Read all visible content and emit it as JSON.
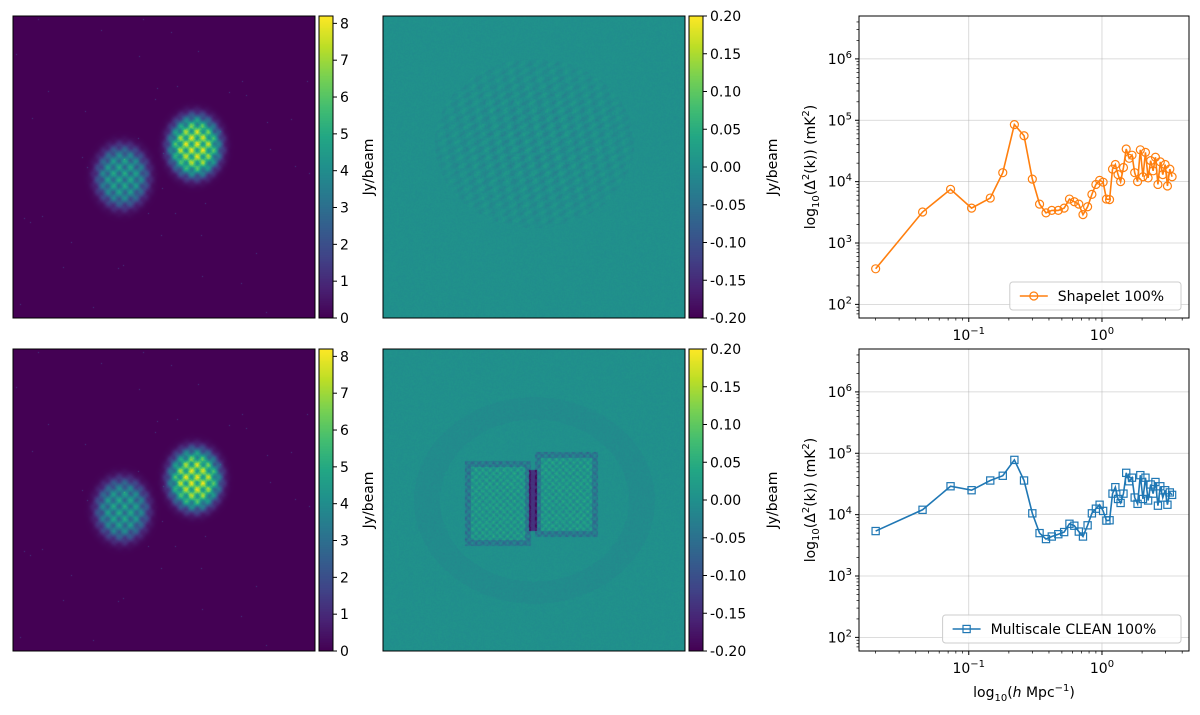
{
  "colorbar_label": "Jy/beam",
  "chart_data": [
    {
      "type": "heatmap",
      "panel": "row1-col1",
      "colormap": "viridis",
      "clim": [
        0,
        8.2
      ],
      "colorbar_ticks": [
        "0",
        "1",
        "2",
        "3",
        "4",
        "5",
        "6",
        "7",
        "8"
      ],
      "colorbar_label": "Jy/beam",
      "blobs": [
        {
          "cx": 0.36,
          "cy": 0.53,
          "rx": 0.085,
          "ry": 0.1,
          "peak": 5.0
        },
        {
          "cx": 0.6,
          "cy": 0.43,
          "rx": 0.085,
          "ry": 0.1,
          "peak": 8.0
        }
      ]
    },
    {
      "type": "heatmap",
      "panel": "row1-col2",
      "colormap": "viridis",
      "clim": [
        -0.2,
        0.2
      ],
      "colorbar_ticks": [
        "-0.20",
        "-0.15",
        "-0.10",
        "-0.05",
        "0.00",
        "0.05",
        "0.10",
        "0.15",
        "0.20"
      ],
      "colorbar_label": "Jy/beam",
      "residual_level": "weak"
    },
    {
      "type": "line",
      "panel": "row1-col3",
      "xscale": "log",
      "yscale": "log",
      "xlim": [
        0.015,
        4.5
      ],
      "ylim": [
        60,
        5000000
      ],
      "ylabel_parts": {
        "prefix": "log",
        "sub": "10",
        "mid": "(Δ",
        "sup": "2",
        "suffix": "(k)) (mK",
        "sup2": "2",
        "end": ")"
      },
      "x_ticks": [
        {
          "base": "10",
          "exp": "−1",
          "value": 0.1
        },
        {
          "base": "10",
          "exp": "0",
          "value": 1
        }
      ],
      "y_ticks": [
        {
          "base": "10",
          "exp": "2",
          "value": 100
        },
        {
          "base": "10",
          "exp": "3",
          "value": 1000
        },
        {
          "base": "10",
          "exp": "4",
          "value": 10000
        },
        {
          "base": "10",
          "exp": "5",
          "value": 100000
        },
        {
          "base": "10",
          "exp": "6",
          "value": 1000000
        }
      ],
      "grid": true,
      "legend_position": "lower-right",
      "series": [
        {
          "name": "Shapelet 100%",
          "color": "#ff7f0e",
          "marker": "circle",
          "x": [
            0.02,
            0.045,
            0.073,
            0.105,
            0.145,
            0.18,
            0.22,
            0.26,
            0.3,
            0.34,
            0.38,
            0.42,
            0.47,
            0.52,
            0.57,
            0.62,
            0.67,
            0.72,
            0.78,
            0.84,
            0.9,
            0.96,
            1.02,
            1.08,
            1.14,
            1.2,
            1.26,
            1.32,
            1.38,
            1.45,
            1.52,
            1.6,
            1.68,
            1.76,
            1.85,
            1.94,
            2.03,
            2.12,
            2.22,
            2.32,
            2.42,
            2.52,
            2.63,
            2.74,
            2.86,
            2.98,
            3.1,
            3.23,
            3.36
          ],
          "y": [
            380,
            3200,
            7500,
            3700,
            5400,
            14000,
            85000,
            56000,
            11000,
            4300,
            3100,
            3400,
            3400,
            3700,
            5200,
            4700,
            4300,
            2900,
            3900,
            6200,
            9000,
            10500,
            9800,
            5200,
            5100,
            16000,
            19000,
            13000,
            10000,
            17000,
            34000,
            24000,
            27000,
            14000,
            10000,
            33000,
            12000,
            30000,
            11500,
            22000,
            15000,
            25000,
            9000,
            21000,
            13000,
            19000,
            8500,
            16000,
            12000
          ]
        }
      ]
    },
    {
      "type": "heatmap",
      "panel": "row2-col1",
      "colormap": "viridis",
      "clim": [
        0,
        8.2
      ],
      "colorbar_ticks": [
        "0",
        "1",
        "2",
        "3",
        "4",
        "5",
        "6",
        "7",
        "8"
      ],
      "colorbar_label": "Jy/beam",
      "blobs": [
        {
          "cx": 0.36,
          "cy": 0.53,
          "rx": 0.085,
          "ry": 0.1,
          "peak": 5.0
        },
        {
          "cx": 0.6,
          "cy": 0.43,
          "rx": 0.085,
          "ry": 0.1,
          "peak": 8.0
        }
      ]
    },
    {
      "type": "heatmap",
      "panel": "row2-col2",
      "colormap": "viridis",
      "clim": [
        -0.2,
        0.2
      ],
      "colorbar_ticks": [
        "-0.20",
        "-0.15",
        "-0.10",
        "-0.05",
        "0.00",
        "0.05",
        "0.10",
        "0.15",
        "0.20"
      ],
      "colorbar_label": "Jy/beam",
      "residual_level": "strong"
    },
    {
      "type": "line",
      "panel": "row2-col3",
      "xscale": "log",
      "yscale": "log",
      "xlim": [
        0.015,
        4.5
      ],
      "ylim": [
        60,
        5000000
      ],
      "xlabel_parts": {
        "prefix": "log",
        "sub": "10",
        "mid": "(",
        "italic": "h",
        "suffix": " Mpc",
        "sup": "−1",
        "end": ")"
      },
      "ylabel_parts": {
        "prefix": "log",
        "sub": "10",
        "mid": "(Δ",
        "sup": "2",
        "suffix": "(k)) (mK",
        "sup2": "2",
        "end": ")"
      },
      "x_ticks": [
        {
          "base": "10",
          "exp": "−1",
          "value": 0.1
        },
        {
          "base": "10",
          "exp": "0",
          "value": 1
        }
      ],
      "y_ticks": [
        {
          "base": "10",
          "exp": "2",
          "value": 100
        },
        {
          "base": "10",
          "exp": "3",
          "value": 1000
        },
        {
          "base": "10",
          "exp": "4",
          "value": 10000
        },
        {
          "base": "10",
          "exp": "5",
          "value": 100000
        },
        {
          "base": "10",
          "exp": "6",
          "value": 1000000
        }
      ],
      "grid": true,
      "legend_position": "lower-right",
      "series": [
        {
          "name": "Multiscale CLEAN 100%",
          "color": "#1f77b4",
          "marker": "square",
          "x": [
            0.02,
            0.045,
            0.073,
            0.105,
            0.145,
            0.18,
            0.22,
            0.26,
            0.3,
            0.34,
            0.38,
            0.42,
            0.47,
            0.52,
            0.57,
            0.62,
            0.67,
            0.72,
            0.78,
            0.84,
            0.9,
            0.96,
            1.02,
            1.08,
            1.14,
            1.2,
            1.26,
            1.32,
            1.38,
            1.45,
            1.52,
            1.6,
            1.68,
            1.76,
            1.85,
            1.94,
            2.03,
            2.12,
            2.22,
            2.32,
            2.42,
            2.52,
            2.63,
            2.74,
            2.86,
            2.98,
            3.1,
            3.23,
            3.36
          ],
          "y": [
            5400,
            12000,
            29000,
            25000,
            36000,
            43000,
            78000,
            36000,
            10500,
            5000,
            4000,
            4400,
            4800,
            5200,
            7100,
            6600,
            5300,
            4400,
            6700,
            10500,
            12500,
            14500,
            11500,
            8000,
            8100,
            22000,
            28000,
            18000,
            15500,
            22000,
            48000,
            35000,
            40000,
            19000,
            15000,
            44000,
            18000,
            40000,
            17000,
            31000,
            22000,
            34000,
            14000,
            29000,
            19000,
            25000,
            14500,
            23000,
            21000
          ]
        }
      ]
    }
  ]
}
